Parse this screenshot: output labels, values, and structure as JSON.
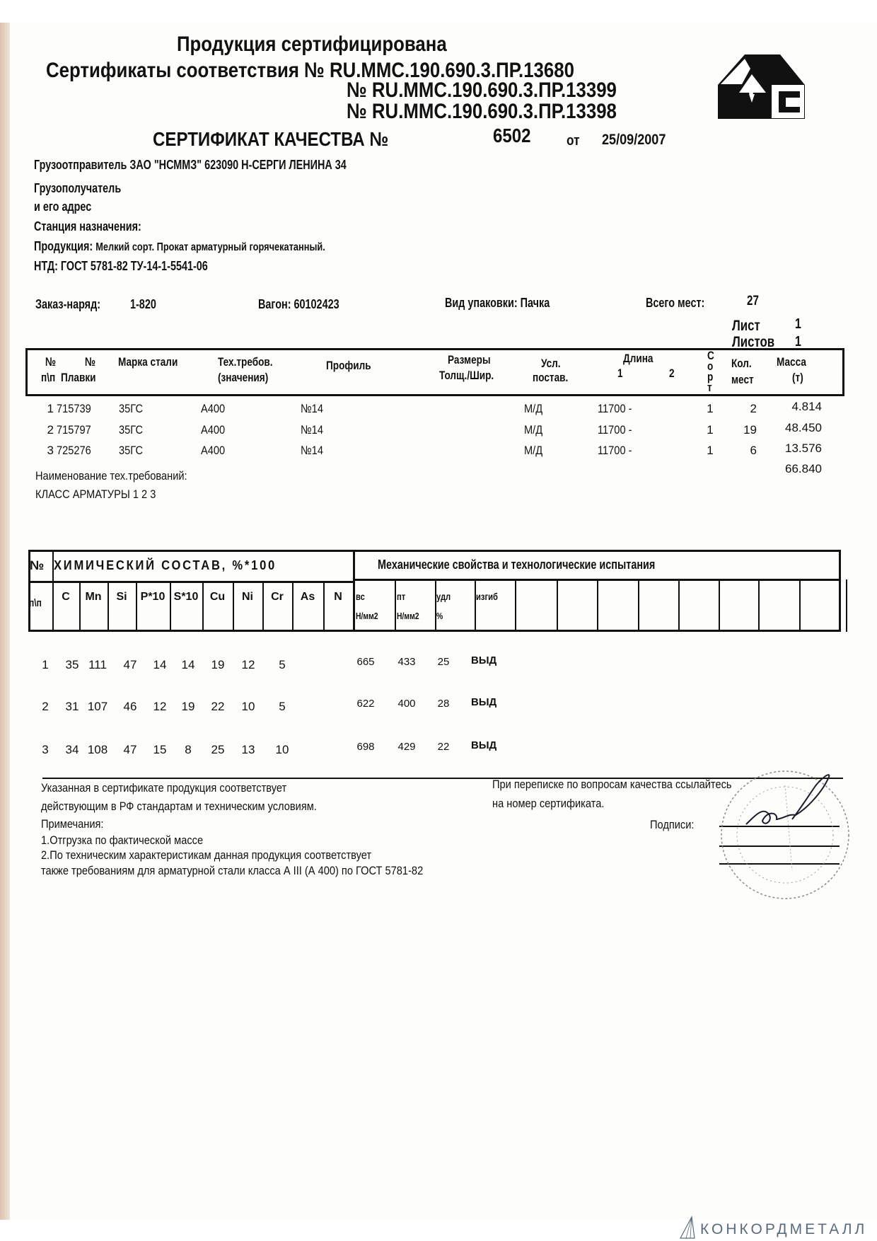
{
  "header": {
    "certified": "Продукция сертифицирована",
    "certs_label": "Сертификаты соответствия",
    "cert_numbers": [
      "№ RU.ММС.190.690.3.ПР.13680",
      "№ RU.ММС.190.690.3.ПР.13399",
      "№ RU.ММС.190.690.3.ПР.13398"
    ],
    "quality_title": "СЕРТИФИКАТ КАЧЕСТВА №",
    "quality_number": "6502",
    "from_label": "от",
    "date": "25/09/2007",
    "logo_text": "МС"
  },
  "info": {
    "shipper_label": "Грузоотправитель",
    "shipper_value": "ЗАО \"НСММЗ\"  623090 Н-СЕРГИ ЛЕНИНА 34",
    "consignee_label": "Грузополучатель",
    "address_label": "и его адрес",
    "station_label": "Станция назначения:",
    "product_label": "Продукция:",
    "product_value": "Мелкий сорт. Прокат арматурный горячекатанный.",
    "ntd_label": "НТД:",
    "ntd_value": "ГОСТ 5781-82  ТУ-14-1-5541-06"
  },
  "order": {
    "order_label": "Заказ-наряд:",
    "order_value": "1-820",
    "wagon_label": "Вагон:",
    "wagon_value": "60102423",
    "pack_label": "Вид упаковки:",
    "pack_value": "Пачка",
    "total_label": "Всего мест:",
    "total_value": "27",
    "sheet_label": "Лист",
    "sheet_value": "1",
    "sheets_label": "Листов",
    "sheets_value": "1"
  },
  "shipment_table": {
    "headers": {
      "num": [
        "№",
        "п\\п"
      ],
      "heat": [
        "№",
        "Плавки"
      ],
      "grade": "Марка стали",
      "tech": [
        "Тех.требов.",
        "(значения)"
      ],
      "profile": "Профиль",
      "size": [
        "Размеры",
        "Толщ./Шир."
      ],
      "cond": [
        "Усл.",
        "постав."
      ],
      "length": [
        "Длина",
        "1",
        "2"
      ],
      "sort": [
        "С",
        "о",
        "р",
        "т"
      ],
      "qty": [
        "Кол.",
        "мест"
      ],
      "mass": [
        "Масса",
        "(т)"
      ]
    },
    "rows": [
      {
        "num": "1",
        "heat": "715739",
        "grade": "35ГС",
        "tech": "A400",
        "profile": "№14",
        "cond": "М/Д",
        "length": "11700 -",
        "sort": "1",
        "qty": "2",
        "mass": "4.814"
      },
      {
        "num": "2",
        "heat": "715797",
        "grade": "35ГС",
        "tech": "A400",
        "profile": "№14",
        "cond": "М/Д",
        "length": "11700 -",
        "sort": "1",
        "qty": "19",
        "mass": "48.450"
      },
      {
        "num": "3",
        "heat": "725276",
        "grade": "35ГС",
        "tech": "A400",
        "profile": "№14",
        "cond": "М/Д",
        "length": "11700 -",
        "sort": "1",
        "qty": "6",
        "mass": "13.576"
      }
    ],
    "total_mass": "66.840",
    "tech_req_label": "Наименование тех.требований:",
    "class_text": "КЛАСС АРМАТУРЫ 1 2 3"
  },
  "chem_table": {
    "num_label": "№",
    "pp_label": "п\\п",
    "chem_title": "ХИМИЧЕСКИЙ   СОСТАВ, %*100",
    "mech_title": "Механические  свойства   и технологические  испытания",
    "chem_cols": [
      "C",
      "Mn",
      "Si",
      "P*10",
      "S*10",
      "Cu",
      "Ni",
      "Cr",
      "As",
      "N"
    ],
    "mech_cols": [
      [
        "вс",
        "Н/мм2"
      ],
      [
        "пт",
        "Н/мм2"
      ],
      [
        "удл",
        "%"
      ],
      [
        "изгиб",
        ""
      ]
    ],
    "rows": [
      {
        "num": "1",
        "chem": [
          "35",
          "111",
          "47",
          "14",
          "14",
          "19",
          "12",
          "5",
          "",
          ""
        ],
        "mech": [
          "665",
          "433",
          "25",
          "ВЫД"
        ]
      },
      {
        "num": "2",
        "chem": [
          "31",
          "107",
          "46",
          "12",
          "19",
          "22",
          "10",
          "5",
          "",
          ""
        ],
        "mech": [
          "622",
          "400",
          "28",
          "ВЫД"
        ]
      },
      {
        "num": "3",
        "chem": [
          "34",
          "108",
          "47",
          "15",
          "8",
          "25",
          "13",
          "10",
          "",
          ""
        ],
        "mech": [
          "698",
          "429",
          "22",
          "ВЫД"
        ]
      }
    ]
  },
  "footer": {
    "conformity_1": "Указанная в сертификате продукция соответствует",
    "conformity_2": "действующим в РФ стандартам и техническим условиям.",
    "notes_label": "Примечания:",
    "note_1": "1.Отгрузка по фактической массе",
    "note_2": "2.По техническим характеристикам данная продукция соответствует",
    "note_3": "также требованиям для арматурной стали класса А III (А 400) по ГОСТ 5781-82",
    "correspondence_1": "При переписке по вопросам качества ссылайтесь",
    "correspondence_2": "на номер сертификата.",
    "signatures_label": "Подписи:"
  },
  "watermark": "КОНКОРДМЕТАЛЛ",
  "colors": {
    "ink": "#111111",
    "stamp": "#8a8a8a",
    "watermark": "#5a6b7d",
    "paper_edge": "#d9c3ad"
  }
}
